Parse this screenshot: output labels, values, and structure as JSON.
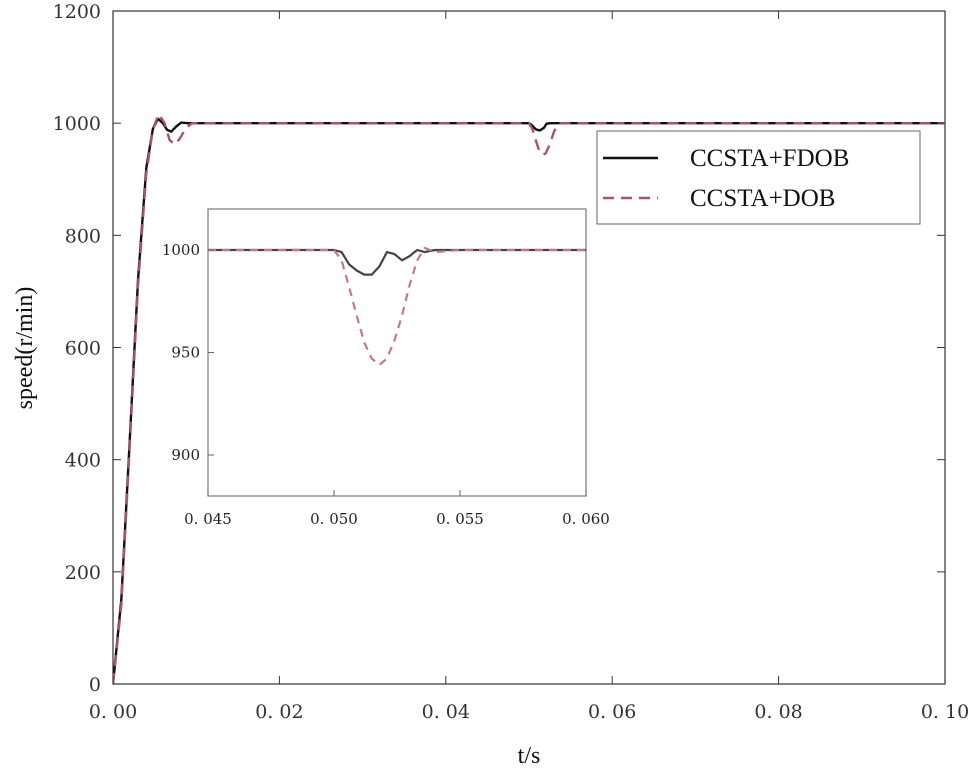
{
  "chart_data": [
    {
      "type": "line",
      "xlabel": "t/s",
      "ylabel": "speed(r/min)",
      "xlim": [
        0,
        0.1
      ],
      "ylim": [
        0,
        1200
      ],
      "xticks": [
        0.0,
        0.02,
        0.04,
        0.06,
        0.08,
        0.1
      ],
      "xtick_labels": [
        "0. 00",
        "0. 02",
        "0. 04",
        "0. 06",
        "0. 08",
        "0. 10"
      ],
      "yticks": [
        0,
        200,
        400,
        600,
        800,
        1000,
        1200
      ],
      "ytick_labels": [
        "0",
        "200",
        "400",
        "600",
        "800",
        "1000",
        "1200"
      ],
      "grid": false,
      "legend": {
        "placement": "right-upper",
        "entries": [
          "CCSTA+FDOB",
          "CCSTA+DOB"
        ]
      },
      "series": [
        {
          "name": "CCSTA+FDOB",
          "color": "#111111",
          "style": "solid",
          "x": [
            0,
            0.001,
            0.002,
            0.003,
            0.004,
            0.0048,
            0.0054,
            0.006,
            0.0065,
            0.007,
            0.0076,
            0.0082,
            0.009,
            0.01,
            0.02,
            0.03,
            0.04,
            0.05,
            0.0503,
            0.0508,
            0.0513,
            0.0518,
            0.0521,
            0.0526,
            0.0535,
            0.06,
            0.07,
            0.08,
            0.09,
            0.1
          ],
          "y": [
            0,
            150,
            430,
            720,
            920,
            990,
            1008,
            1000,
            988,
            985,
            994,
            1001,
            1000,
            1000,
            1000,
            1000,
            1000,
            1000,
            997,
            989,
            987,
            992,
            999,
            1000,
            1000,
            1000,
            1000,
            1000,
            1000,
            1000
          ]
        },
        {
          "name": "CCSTA+DOB",
          "color": "#a8556b",
          "style": "dashed",
          "x": [
            0,
            0.001,
            0.002,
            0.003,
            0.004,
            0.0048,
            0.0055,
            0.0062,
            0.0068,
            0.0074,
            0.008,
            0.0088,
            0.0095,
            0.011,
            0.02,
            0.03,
            0.04,
            0.05,
            0.0504,
            0.0508,
            0.0512,
            0.0516,
            0.052,
            0.0525,
            0.053,
            0.0536,
            0.054,
            0.06,
            0.07,
            0.08,
            0.09,
            0.1
          ],
          "y": [
            0,
            140,
            420,
            710,
            910,
            990,
            1016,
            1000,
            970,
            962,
            972,
            992,
            1000,
            1000,
            1000,
            1000,
            1000,
            1000,
            990,
            970,
            952,
            944,
            946,
            962,
            985,
            1000,
            1000,
            1000,
            1000,
            1000,
            1000,
            1000
          ]
        }
      ]
    },
    {
      "type": "line",
      "role": "inset",
      "xlim": [
        0.045,
        0.06
      ],
      "ylim": [
        880,
        1020
      ],
      "xticks": [
        0.045,
        0.05,
        0.055,
        0.06
      ],
      "xtick_labels": [
        "0. 045",
        "0. 050",
        "0. 055",
        "0. 060"
      ],
      "yticks": [
        900,
        950,
        1000
      ],
      "ytick_labels": [
        "900",
        "950",
        "1000"
      ],
      "grid": false,
      "series": [
        {
          "name": "CCSTA+FDOB",
          "color": "#444444",
          "style": "solid",
          "x": [
            0.045,
            0.05,
            0.0503,
            0.0506,
            0.0509,
            0.0512,
            0.0515,
            0.0518,
            0.0521,
            0.0524,
            0.0527,
            0.053,
            0.0533,
            0.0536,
            0.054,
            0.06
          ],
          "y": [
            1000,
            1000,
            999,
            993,
            990,
            988,
            988,
            992,
            999,
            998,
            995,
            997,
            1000,
            999,
            1000,
            1000
          ]
        },
        {
          "name": "CCSTA+DOB",
          "color": "#c4788f",
          "style": "dashed",
          "x": [
            0.045,
            0.05,
            0.0503,
            0.0506,
            0.0509,
            0.0512,
            0.0515,
            0.0518,
            0.0521,
            0.0524,
            0.0527,
            0.053,
            0.0533,
            0.0536,
            0.054,
            0.055,
            0.06
          ],
          "y": [
            1000,
            1000,
            995,
            982,
            968,
            955,
            947,
            944,
            947,
            956,
            968,
            983,
            995,
            1001,
            999,
            1000,
            1000
          ]
        }
      ]
    }
  ]
}
